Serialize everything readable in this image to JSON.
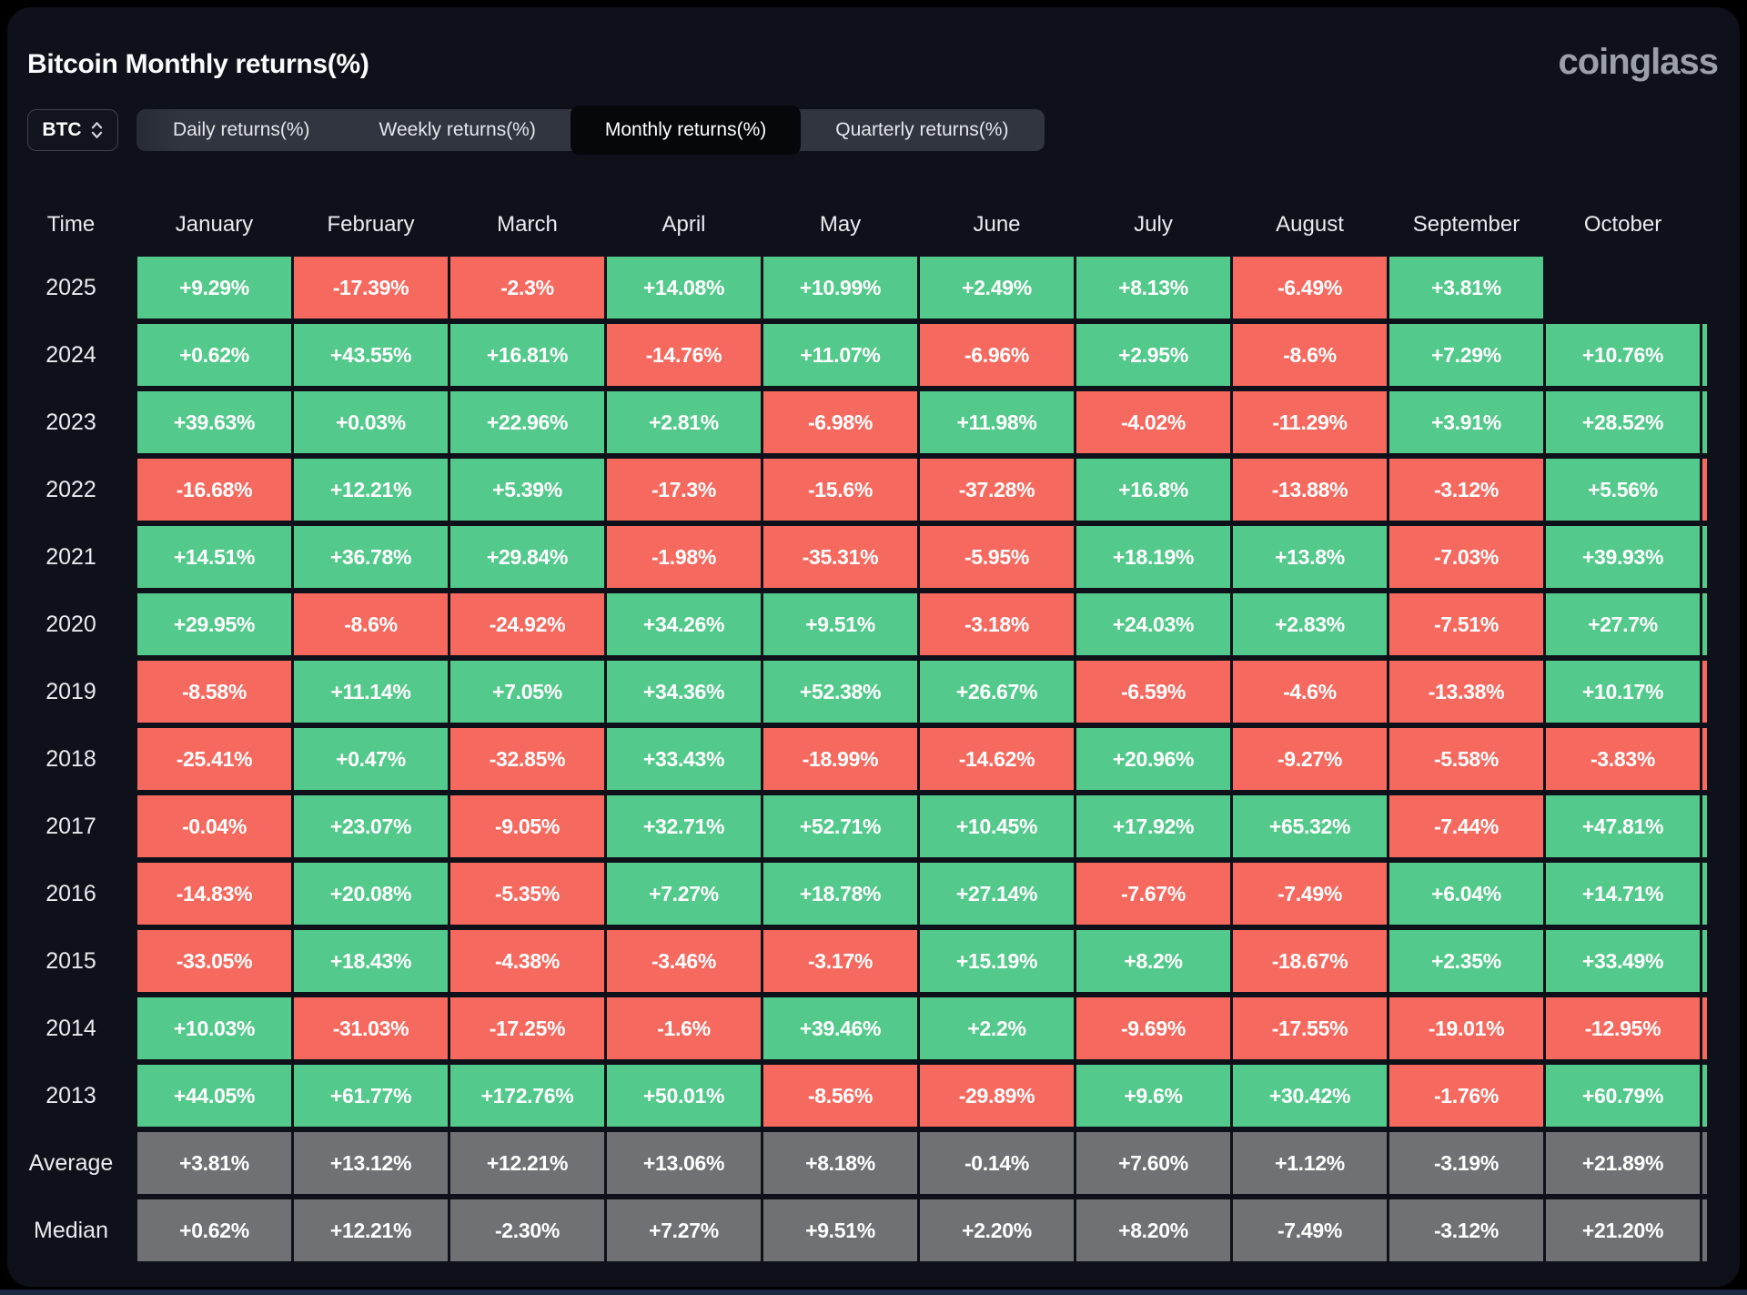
{
  "header": {
    "title": "Bitcoin Monthly returns(%)",
    "logo": "coinglass"
  },
  "controls": {
    "symbol": "BTC",
    "tabs": [
      {
        "label": "Daily returns(%)",
        "selected": false
      },
      {
        "label": "Weekly returns(%)",
        "selected": false
      },
      {
        "label": "Monthly returns(%)",
        "selected": true
      },
      {
        "label": "Quarterly returns(%)",
        "selected": false
      }
    ]
  },
  "colors": {
    "positive": "#53c98b",
    "negative": "#f6695f",
    "neutral": "#6f7175",
    "panel_bg": "#0e111a"
  },
  "table": {
    "columns": [
      "Time",
      "January",
      "February",
      "March",
      "April",
      "May",
      "June",
      "July",
      "August",
      "September",
      "October"
    ],
    "rows": [
      {
        "label": "2025",
        "type": "year",
        "cells": [
          "+9.29%",
          "-17.39%",
          "-2.3%",
          "+14.08%",
          "+10.99%",
          "+2.49%",
          "+8.13%",
          "-6.49%",
          "+3.81%"
        ],
        "sliver": null
      },
      {
        "label": "2024",
        "type": "year",
        "cells": [
          "+0.62%",
          "+43.55%",
          "+16.81%",
          "-14.76%",
          "+11.07%",
          "-6.96%",
          "+2.95%",
          "-8.6%",
          "+7.29%",
          "+10.76%"
        ],
        "sliver": "pos"
      },
      {
        "label": "2023",
        "type": "year",
        "cells": [
          "+39.63%",
          "+0.03%",
          "+22.96%",
          "+2.81%",
          "-6.98%",
          "+11.98%",
          "-4.02%",
          "-11.29%",
          "+3.91%",
          "+28.52%"
        ],
        "sliver": "pos"
      },
      {
        "label": "2022",
        "type": "year",
        "cells": [
          "-16.68%",
          "+12.21%",
          "+5.39%",
          "-17.3%",
          "-15.6%",
          "-37.28%",
          "+16.8%",
          "-13.88%",
          "-3.12%",
          "+5.56%"
        ],
        "sliver": "neg"
      },
      {
        "label": "2021",
        "type": "year",
        "cells": [
          "+14.51%",
          "+36.78%",
          "+29.84%",
          "-1.98%",
          "-35.31%",
          "-5.95%",
          "+18.19%",
          "+13.8%",
          "-7.03%",
          "+39.93%"
        ],
        "sliver": "pos"
      },
      {
        "label": "2020",
        "type": "year",
        "cells": [
          "+29.95%",
          "-8.6%",
          "-24.92%",
          "+34.26%",
          "+9.51%",
          "-3.18%",
          "+24.03%",
          "+2.83%",
          "-7.51%",
          "+27.7%"
        ],
        "sliver": "pos"
      },
      {
        "label": "2019",
        "type": "year",
        "cells": [
          "-8.58%",
          "+11.14%",
          "+7.05%",
          "+34.36%",
          "+52.38%",
          "+26.67%",
          "-6.59%",
          "-4.6%",
          "-13.38%",
          "+10.17%"
        ],
        "sliver": "neg"
      },
      {
        "label": "2018",
        "type": "year",
        "cells": [
          "-25.41%",
          "+0.47%",
          "-32.85%",
          "+33.43%",
          "-18.99%",
          "-14.62%",
          "+20.96%",
          "-9.27%",
          "-5.58%",
          "-3.83%"
        ],
        "sliver": "neg"
      },
      {
        "label": "2017",
        "type": "year",
        "cells": [
          "-0.04%",
          "+23.07%",
          "-9.05%",
          "+32.71%",
          "+52.71%",
          "+10.45%",
          "+17.92%",
          "+65.32%",
          "-7.44%",
          "+47.81%"
        ],
        "sliver": "pos"
      },
      {
        "label": "2016",
        "type": "year",
        "cells": [
          "-14.83%",
          "+20.08%",
          "-5.35%",
          "+7.27%",
          "+18.78%",
          "+27.14%",
          "-7.67%",
          "-7.49%",
          "+6.04%",
          "+14.71%"
        ],
        "sliver": "pos"
      },
      {
        "label": "2015",
        "type": "year",
        "cells": [
          "-33.05%",
          "+18.43%",
          "-4.38%",
          "-3.46%",
          "-3.17%",
          "+15.19%",
          "+8.2%",
          "-18.67%",
          "+2.35%",
          "+33.49%"
        ],
        "sliver": "pos"
      },
      {
        "label": "2014",
        "type": "year",
        "cells": [
          "+10.03%",
          "-31.03%",
          "-17.25%",
          "-1.6%",
          "+39.46%",
          "+2.2%",
          "-9.69%",
          "-17.55%",
          "-19.01%",
          "-12.95%"
        ],
        "sliver": "neg"
      },
      {
        "label": "2013",
        "type": "year",
        "cells": [
          "+44.05%",
          "+61.77%",
          "+172.76%",
          "+50.01%",
          "-8.56%",
          "-29.89%",
          "+9.6%",
          "+30.42%",
          "-1.76%",
          "+60.79%"
        ],
        "sliver": "pos"
      },
      {
        "label": "Average",
        "type": "stat",
        "cells": [
          "+3.81%",
          "+13.12%",
          "+12.21%",
          "+13.06%",
          "+8.18%",
          "-0.14%",
          "+7.60%",
          "+1.12%",
          "-3.19%",
          "+21.89%"
        ],
        "sliver": "neutral"
      },
      {
        "label": "Median",
        "type": "stat",
        "cells": [
          "+0.62%",
          "+12.21%",
          "-2.30%",
          "+7.27%",
          "+9.51%",
          "+2.20%",
          "+8.20%",
          "-7.49%",
          "-3.12%",
          "+21.20%"
        ],
        "sliver": "neutral"
      }
    ]
  }
}
